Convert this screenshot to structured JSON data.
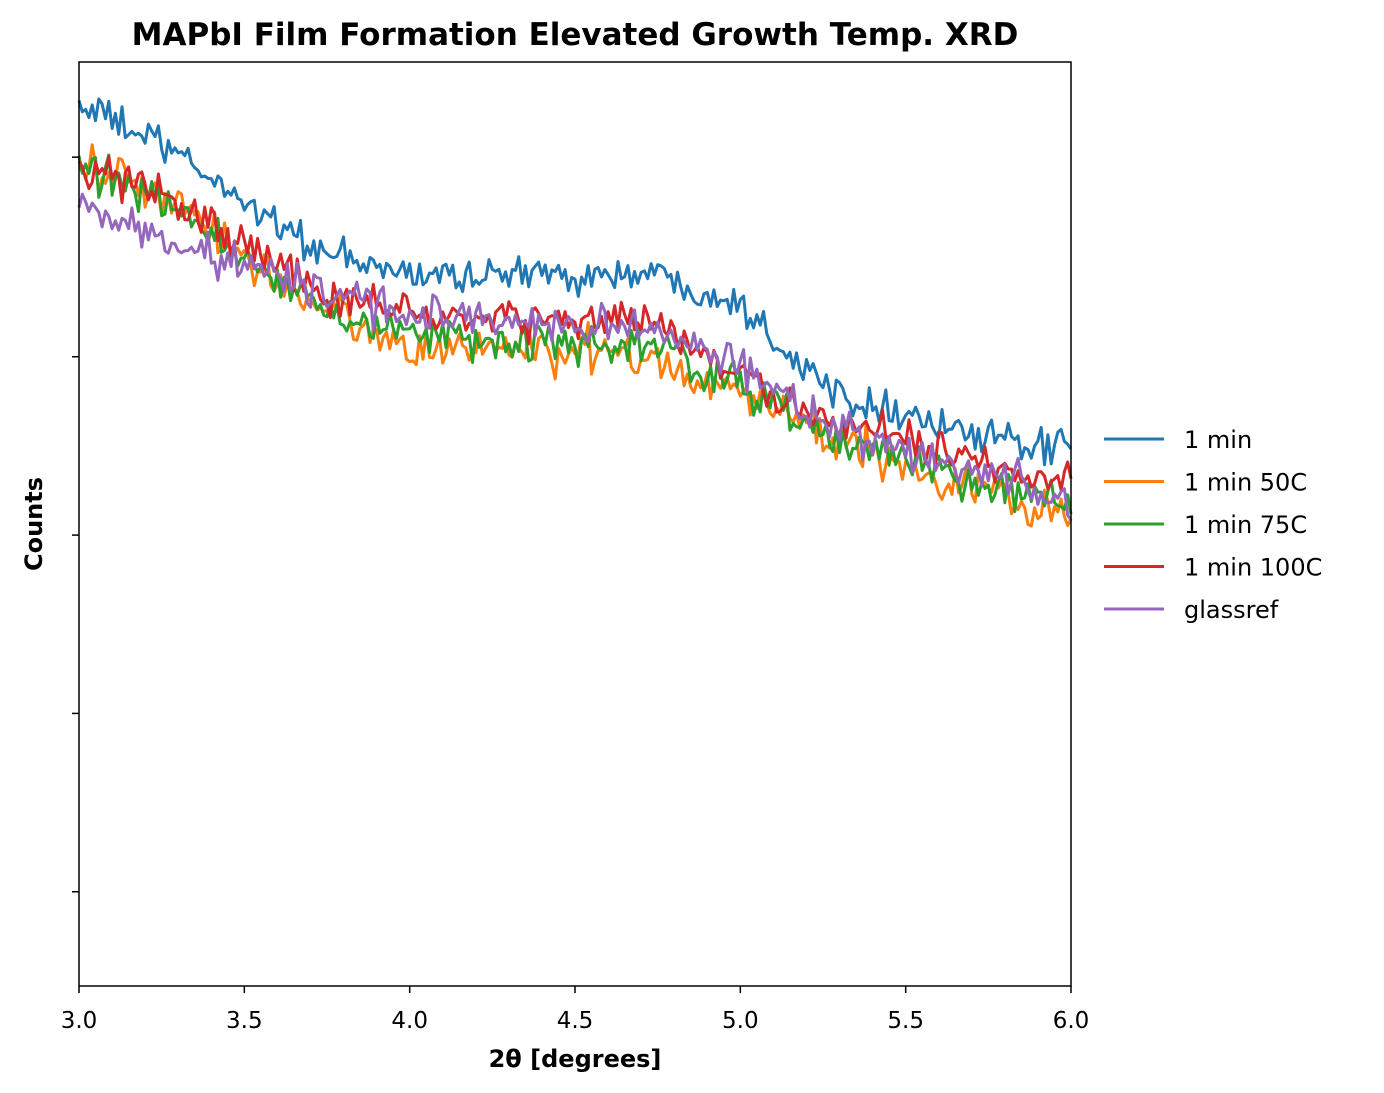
{
  "chart_data": {
    "type": "line",
    "title": "MAPbI Film Formation Elevated Growth Temp. XRD",
    "xlabel": "2θ [degrees]",
    "ylabel": "Counts",
    "xlim": [
      3.0,
      6.0
    ],
    "ylim": [
      0,
      1
    ],
    "x_ticks": [
      3.0,
      3.5,
      4.0,
      4.5,
      5.0,
      5.5,
      6.0
    ],
    "x_tick_labels": [
      "3.0",
      "3.5",
      "4.0",
      "4.5",
      "5.0",
      "5.5",
      "6.0"
    ],
    "y_ticks": [
      0.102,
      0.295,
      0.488,
      0.681,
      0.897
    ],
    "y_tick_labels_shown": false,
    "grid": false,
    "legend_position": "right-outside",
    "x": [
      3.0,
      3.25,
      3.5,
      3.75,
      4.0,
      4.25,
      4.5,
      4.75,
      5.0,
      5.25,
      5.5,
      5.75,
      6.0
    ],
    "series": [
      {
        "name": "1 min",
        "color": "#1f77b4",
        "noise": 0.018,
        "values": [
          0.955,
          0.91,
          0.85,
          0.79,
          0.77,
          0.77,
          0.77,
          0.77,
          0.74,
          0.65,
          0.62,
          0.59,
          0.58
        ]
      },
      {
        "name": "1 min 50C",
        "color": "#ff7f0e",
        "noise": 0.022,
        "values": [
          0.89,
          0.855,
          0.79,
          0.73,
          0.69,
          0.69,
          0.685,
          0.68,
          0.64,
          0.6,
          0.56,
          0.54,
          0.5
        ]
      },
      {
        "name": "1 min 75C",
        "color": "#2ca02c",
        "noise": 0.02,
        "values": [
          0.89,
          0.845,
          0.79,
          0.73,
          0.71,
          0.695,
          0.695,
          0.69,
          0.65,
          0.6,
          0.565,
          0.545,
          0.52
        ]
      },
      {
        "name": "1 min 100C",
        "color": "#d62728",
        "noise": 0.02,
        "values": [
          0.885,
          0.86,
          0.8,
          0.75,
          0.73,
          0.72,
          0.72,
          0.72,
          0.66,
          0.61,
          0.59,
          0.565,
          0.54
        ]
      },
      {
        "name": "glassref",
        "color": "#9467bd",
        "noise": 0.02,
        "values": [
          0.84,
          0.81,
          0.78,
          0.75,
          0.73,
          0.72,
          0.715,
          0.71,
          0.67,
          0.61,
          0.58,
          0.56,
          0.52
        ]
      }
    ]
  }
}
